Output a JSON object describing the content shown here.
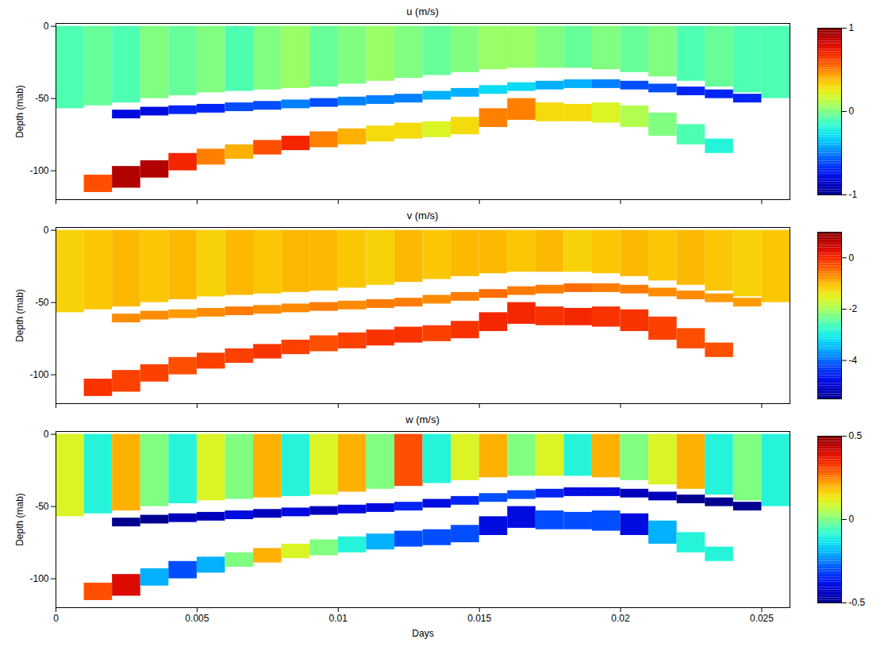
{
  "chart_data": [
    {
      "type": "heatmap",
      "title": "u (m/s)",
      "ylabel": "Depth (mab)",
      "tick_labels": "y",
      "xlim": [
        0,
        0.026
      ],
      "xticks": [
        0,
        0.005,
        0.01,
        0.015,
        0.02,
        0.025
      ],
      "ylim": [
        -120,
        2
      ],
      "yticks": [
        0,
        -50,
        -100
      ],
      "colorbar": {
        "range": [
          -1,
          1
        ],
        "ticks": [
          -1,
          0,
          1
        ]
      },
      "x": [
        0,
        0.001,
        0.002,
        0.003,
        0.004,
        0.005,
        0.006,
        0.007,
        0.008,
        0.009,
        0.01,
        0.011,
        0.012,
        0.013,
        0.014,
        0.015,
        0.016,
        0.017,
        0.018,
        0.019,
        0.02,
        0.021,
        0.022,
        0.023,
        0.024,
        0.025
      ],
      "layers": [
        {
          "top": [
            0,
            0,
            0,
            0,
            0,
            0,
            0,
            0,
            0,
            0,
            0,
            0,
            0,
            0,
            0,
            0,
            0,
            0,
            0,
            0,
            0,
            0,
            0,
            0,
            0,
            0
          ],
          "bottom": [
            -57,
            -55,
            -53,
            -50,
            -48,
            -46,
            -45,
            -44,
            -43,
            -42,
            -40,
            -38,
            -36,
            -34,
            -32,
            -30,
            -29,
            -29,
            -29,
            -30,
            -32,
            -35,
            -38,
            -42,
            -46,
            -50
          ],
          "values": [
            -0.1,
            -0.05,
            -0.1,
            0,
            -0.05,
            0,
            -0.1,
            0,
            0.05,
            -0.05,
            0,
            0.05,
            0,
            -0.05,
            0,
            0.05,
            0.05,
            0,
            -0.05,
            0,
            -0.05,
            0,
            -0.1,
            -0.05,
            -0.1,
            -0.1
          ]
        },
        {
          "top": [
            null,
            null,
            -58,
            -56,
            -55,
            -54,
            -53,
            -52,
            -51,
            -50,
            -49,
            -48,
            -47,
            -45,
            -43,
            -41,
            -39,
            -38,
            -37,
            -37,
            -38,
            -40,
            -42,
            -44,
            -47,
            null
          ],
          "bottom": [
            null,
            null,
            -64,
            -62,
            -61,
            -60,
            -59,
            -58,
            -57,
            -56,
            -55,
            -54,
            -53,
            -51,
            -49,
            -47,
            -45,
            -44,
            -43,
            -43,
            -44,
            -46,
            -48,
            -50,
            -53,
            null
          ],
          "values": [
            null,
            null,
            -0.8,
            -0.8,
            -0.7,
            -0.7,
            -0.6,
            -0.6,
            -0.5,
            -0.6,
            -0.5,
            -0.5,
            -0.5,
            -0.4,
            -0.4,
            -0.3,
            -0.3,
            -0.4,
            -0.4,
            -0.5,
            -0.6,
            -0.6,
            -0.7,
            -0.7,
            -0.7,
            null
          ]
        },
        {
          "top": [
            null,
            -103,
            -97,
            -93,
            -88,
            -85,
            -82,
            -79,
            -76,
            -73,
            -71,
            -69,
            -67,
            -66,
            -63,
            -57,
            -50,
            -53,
            -54,
            -53,
            -55,
            -60,
            -68,
            -78,
            null,
            null
          ],
          "bottom": [
            null,
            -115,
            -112,
            -105,
            -100,
            -96,
            -92,
            -89,
            -86,
            -84,
            -82,
            -80,
            -78,
            -77,
            -75,
            -70,
            -65,
            -66,
            -66,
            -67,
            -70,
            -76,
            -82,
            -88,
            null,
            null
          ],
          "values": [
            null,
            0.6,
            0.9,
            0.9,
            0.7,
            0.5,
            0.4,
            0.6,
            0.7,
            0.5,
            0.4,
            0.3,
            0.3,
            0.2,
            0.3,
            0.5,
            0.5,
            0.3,
            0.3,
            0.2,
            0.1,
            0,
            -0.1,
            -0.2,
            null,
            null
          ]
        }
      ]
    },
    {
      "type": "heatmap",
      "title": "v (m/s)",
      "ylabel": "Depth (mab)",
      "tick_labels": "y",
      "xlim": [
        0,
        0.026
      ],
      "xticks": [
        0,
        0.005,
        0.01,
        0.015,
        0.02,
        0.025
      ],
      "ylim": [
        -120,
        2
      ],
      "yticks": [
        0,
        -50,
        -100
      ],
      "colorbar": {
        "range": [
          -5.5,
          1
        ],
        "ticks": [
          -4,
          -2,
          0
        ]
      },
      "x": [
        0,
        0.001,
        0.002,
        0.003,
        0.004,
        0.005,
        0.006,
        0.007,
        0.008,
        0.009,
        0.01,
        0.011,
        0.012,
        0.013,
        0.014,
        0.015,
        0.016,
        0.017,
        0.018,
        0.019,
        0.02,
        0.021,
        0.022,
        0.023,
        0.024,
        0.025
      ],
      "layers": [
        {
          "top": [
            0,
            0,
            0,
            0,
            0,
            0,
            0,
            0,
            0,
            0,
            0,
            0,
            0,
            0,
            0,
            0,
            0,
            0,
            0,
            0,
            0,
            0,
            0,
            0,
            0,
            0
          ],
          "bottom": [
            -57,
            -55,
            -53,
            -50,
            -48,
            -46,
            -45,
            -44,
            -43,
            -42,
            -40,
            -38,
            -36,
            -34,
            -32,
            -30,
            -29,
            -29,
            -29,
            -30,
            -32,
            -35,
            -38,
            -42,
            -46,
            -50
          ],
          "values": [
            -1.2,
            -1.1,
            -1.0,
            -1.1,
            -1.0,
            -1.2,
            -1.0,
            -1.1,
            -1.0,
            -1.0,
            -1.1,
            -1.2,
            -1.0,
            -1.1,
            -1.0,
            -1.0,
            -1.1,
            -1.0,
            -1.2,
            -1.1,
            -1.0,
            -1.1,
            -1.0,
            -1.1,
            -1.2,
            -1.1
          ]
        },
        {
          "top": [
            null,
            null,
            -58,
            -56,
            -55,
            -54,
            -53,
            -52,
            -51,
            -50,
            -49,
            -48,
            -47,
            -45,
            -43,
            -41,
            -39,
            -38,
            -37,
            -37,
            -38,
            -40,
            -42,
            -44,
            -47,
            null
          ],
          "bottom": [
            null,
            null,
            -64,
            -62,
            -61,
            -60,
            -59,
            -58,
            -57,
            -56,
            -55,
            -54,
            -53,
            -51,
            -49,
            -47,
            -45,
            -44,
            -43,
            -43,
            -44,
            -46,
            -48,
            -50,
            -53,
            null
          ],
          "values": [
            null,
            null,
            -0.7,
            -0.7,
            -0.8,
            -0.7,
            -0.6,
            -0.7,
            -0.7,
            -0.6,
            -0.7,
            -0.6,
            -0.6,
            -0.7,
            -0.6,
            -0.5,
            -0.6,
            -0.6,
            -0.5,
            -0.6,
            -0.6,
            -0.7,
            -0.7,
            -0.8,
            -0.8,
            null
          ]
        },
        {
          "top": [
            null,
            -103,
            -97,
            -93,
            -88,
            -85,
            -82,
            -79,
            -76,
            -73,
            -71,
            -69,
            -67,
            -66,
            -63,
            -57,
            -50,
            -53,
            -54,
            -53,
            -55,
            -60,
            -68,
            -78,
            null,
            null
          ],
          "bottom": [
            null,
            -115,
            -112,
            -105,
            -100,
            -96,
            -92,
            -89,
            -86,
            -84,
            -82,
            -80,
            -78,
            -77,
            -75,
            -70,
            -65,
            -66,
            -66,
            -67,
            -70,
            -76,
            -82,
            -88,
            null,
            null
          ],
          "values": [
            null,
            -0.1,
            -0.2,
            -0.2,
            -0.3,
            -0.2,
            -0.2,
            -0.1,
            -0.2,
            -0.3,
            -0.2,
            -0.1,
            -0.1,
            -0.2,
            -0.1,
            0,
            0,
            -0.1,
            0,
            -0.1,
            -0.1,
            -0.2,
            -0.3,
            -0.3,
            null,
            null
          ]
        }
      ]
    },
    {
      "type": "heatmap",
      "title": "w (m/s)",
      "xlabel": "Days",
      "ylabel": "Depth (mab)",
      "xlim": [
        0,
        0.026
      ],
      "xticks": [
        0,
        0.005,
        0.01,
        0.015,
        0.02,
        0.025
      ],
      "ylim": [
        -120,
        2
      ],
      "yticks": [
        0,
        -50,
        -100
      ],
      "colorbar": {
        "range": [
          -0.5,
          0.5
        ],
        "ticks": [
          -0.5,
          0,
          0.5
        ]
      },
      "x": [
        0,
        0.001,
        0.002,
        0.003,
        0.004,
        0.005,
        0.006,
        0.007,
        0.008,
        0.009,
        0.01,
        0.011,
        0.012,
        0.013,
        0.014,
        0.015,
        0.016,
        0.017,
        0.018,
        0.019,
        0.02,
        0.021,
        0.022,
        0.023,
        0.024,
        0.025
      ],
      "layers": [
        {
          "top": [
            0,
            0,
            0,
            0,
            0,
            0,
            0,
            0,
            0,
            0,
            0,
            0,
            0,
            0,
            0,
            0,
            0,
            0,
            0,
            0,
            0,
            0,
            0,
            0,
            0,
            0
          ],
          "bottom": [
            -57,
            -55,
            -53,
            -50,
            -48,
            -46,
            -45,
            -44,
            -43,
            -42,
            -40,
            -38,
            -36,
            -34,
            -32,
            -30,
            -29,
            -29,
            -29,
            -30,
            -32,
            -35,
            -38,
            -42,
            -46,
            -50
          ],
          "values": [
            0.1,
            -0.1,
            0.2,
            0,
            -0.1,
            0.1,
            0,
            0.2,
            -0.1,
            0.1,
            0.2,
            0,
            0.3,
            -0.1,
            0.1,
            0.2,
            0,
            0.1,
            -0.1,
            0.2,
            0,
            0.1,
            0.2,
            -0.1,
            0,
            -0.1
          ]
        },
        {
          "top": [
            null,
            null,
            -58,
            -56,
            -55,
            -54,
            -53,
            -52,
            -51,
            -50,
            -49,
            -48,
            -47,
            -45,
            -43,
            -41,
            -39,
            -38,
            -37,
            -37,
            -38,
            -40,
            -42,
            -44,
            -47,
            null
          ],
          "bottom": [
            null,
            null,
            -64,
            -62,
            -61,
            -60,
            -59,
            -58,
            -57,
            -56,
            -55,
            -54,
            -53,
            -51,
            -49,
            -47,
            -45,
            -44,
            -43,
            -43,
            -44,
            -46,
            -48,
            -50,
            -53,
            null
          ],
          "values": [
            null,
            null,
            -0.5,
            -0.5,
            -0.45,
            -0.45,
            -0.4,
            -0.45,
            -0.4,
            -0.45,
            -0.4,
            -0.4,
            -0.35,
            -0.4,
            -0.35,
            -0.3,
            -0.3,
            -0.35,
            -0.4,
            -0.4,
            -0.45,
            -0.45,
            -0.5,
            -0.5,
            -0.5,
            null
          ]
        },
        {
          "top": [
            null,
            -103,
            -97,
            -93,
            -88,
            -85,
            -82,
            -79,
            -76,
            -73,
            -71,
            -69,
            -67,
            -66,
            -63,
            -57,
            -50,
            -53,
            -54,
            -53,
            -55,
            -60,
            -68,
            -78,
            null,
            null
          ],
          "bottom": [
            null,
            -115,
            -112,
            -105,
            -100,
            -96,
            -92,
            -89,
            -86,
            -84,
            -82,
            -80,
            -78,
            -77,
            -75,
            -70,
            -65,
            -66,
            -66,
            -67,
            -70,
            -76,
            -82,
            -88,
            null,
            null
          ],
          "values": [
            null,
            0.3,
            0.4,
            -0.2,
            -0.3,
            -0.2,
            0,
            0.2,
            0.1,
            0,
            -0.1,
            -0.2,
            -0.3,
            -0.3,
            -0.3,
            -0.4,
            -0.4,
            -0.3,
            -0.3,
            -0.3,
            -0.4,
            -0.2,
            -0.1,
            -0.1,
            null,
            null
          ]
        }
      ]
    }
  ]
}
